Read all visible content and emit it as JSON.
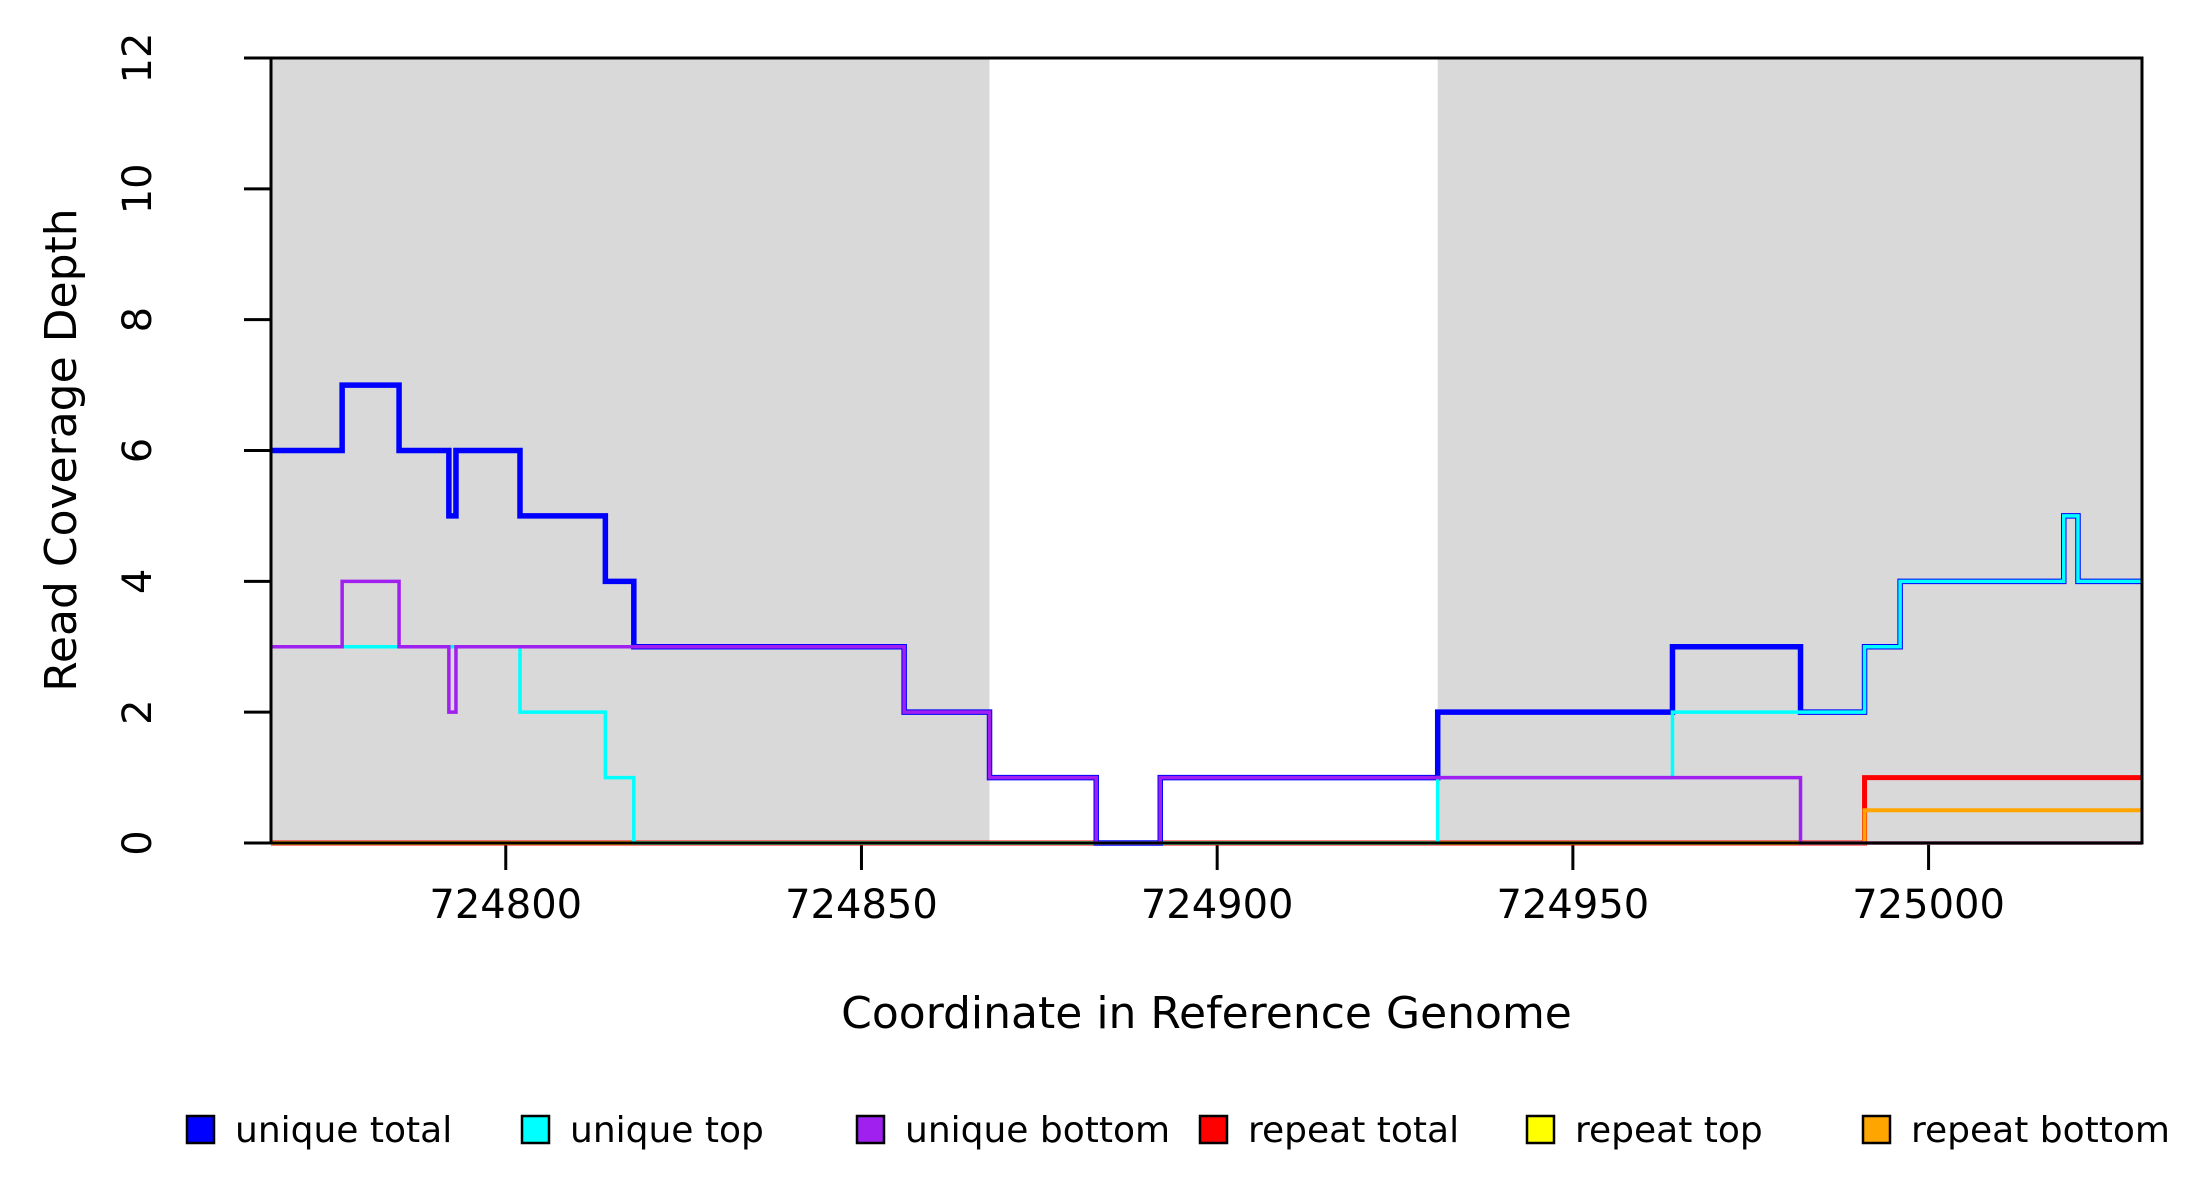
{
  "chart_data": {
    "type": "line",
    "subtype": "step",
    "title": "",
    "xlabel": "Coordinate in Reference Genome",
    "ylabel": "Read Coverage Depth",
    "xlim": [
      724767,
      725030
    ],
    "ylim": [
      0,
      12
    ],
    "x_ticks": [
      "724800",
      "724850",
      "724900",
      "724950",
      "725000"
    ],
    "x_tick_values": [
      724800,
      724850,
      724900,
      724950,
      725000
    ],
    "y_ticks": [
      "0",
      "2",
      "4",
      "6",
      "8",
      "10",
      "12"
    ],
    "y_tick_values": [
      0,
      2,
      4,
      6,
      8,
      10,
      12
    ],
    "grid": false,
    "plot_border_color": "#000000",
    "background_color": "#ffffff",
    "shaded_regions": [
      {
        "x_start": 724767,
        "x_end": 724868,
        "color": "#d9d9d9"
      },
      {
        "x_start": 724931,
        "x_end": 725030,
        "color": "#d9d9d9"
      }
    ],
    "series": [
      {
        "name": "unique total",
        "color": "#0000ff",
        "line_width": 5.5,
        "draw_order": 4,
        "points": [
          [
            724767,
            6
          ],
          [
            724777,
            7
          ],
          [
            724785,
            6
          ],
          [
            724792,
            5
          ],
          [
            724793,
            6
          ],
          [
            724802,
            5
          ],
          [
            724814,
            4
          ],
          [
            724818,
            3
          ],
          [
            724856,
            2
          ],
          [
            724868,
            1
          ],
          [
            724883,
            0
          ],
          [
            724892,
            1
          ],
          [
            724931,
            2
          ],
          [
            724964,
            3
          ],
          [
            724982,
            2
          ],
          [
            724991,
            3
          ],
          [
            724996,
            4
          ],
          [
            725019,
            5
          ],
          [
            725021,
            4
          ]
        ]
      },
      {
        "name": "unique top",
        "color": "#00ffff",
        "line_width": 3.5,
        "draw_order": 5,
        "points": [
          [
            724767,
            3
          ],
          [
            724802,
            2
          ],
          [
            724814,
            1
          ],
          [
            724818,
            0
          ],
          [
            724931,
            1
          ],
          [
            724964,
            2
          ],
          [
            724991,
            3
          ],
          [
            724996,
            4
          ],
          [
            725019,
            5
          ],
          [
            725021,
            4
          ]
        ]
      },
      {
        "name": "unique bottom",
        "color": "#a020f0",
        "line_width": 3.5,
        "draw_order": 6,
        "points": [
          [
            724767,
            3
          ],
          [
            724777,
            4
          ],
          [
            724785,
            3
          ],
          [
            724792,
            2
          ],
          [
            724793,
            3
          ],
          [
            724856,
            2
          ],
          [
            724868,
            1
          ],
          [
            724883,
            0
          ],
          [
            724892,
            1
          ],
          [
            724982,
            0
          ]
        ]
      },
      {
        "name": "repeat total",
        "color": "#ff0000",
        "line_width": 5,
        "draw_order": 2,
        "points": [
          [
            724767,
            0
          ],
          [
            724991,
            1
          ]
        ]
      },
      {
        "name": "repeat top",
        "color": "#ffff00",
        "line_width": 3.5,
        "draw_order": 1,
        "points": [
          [
            724767,
            0
          ]
        ]
      },
      {
        "name": "repeat bottom",
        "color": "#ffa500",
        "line_width": 4,
        "draw_order": 3,
        "points": [
          [
            724767,
            0
          ],
          [
            724991,
            0.5
          ]
        ]
      }
    ],
    "legend": {
      "position": "bottom",
      "items": [
        {
          "label": "unique total",
          "color": "#0000ff"
        },
        {
          "label": "unique top",
          "color": "#00ffff"
        },
        {
          "label": "unique bottom",
          "color": "#a020f0"
        },
        {
          "label": "repeat total",
          "color": "#ff0000"
        },
        {
          "label": "repeat top",
          "color": "#ffff00"
        },
        {
          "label": "repeat bottom",
          "color": "#ffa500"
        }
      ]
    }
  }
}
